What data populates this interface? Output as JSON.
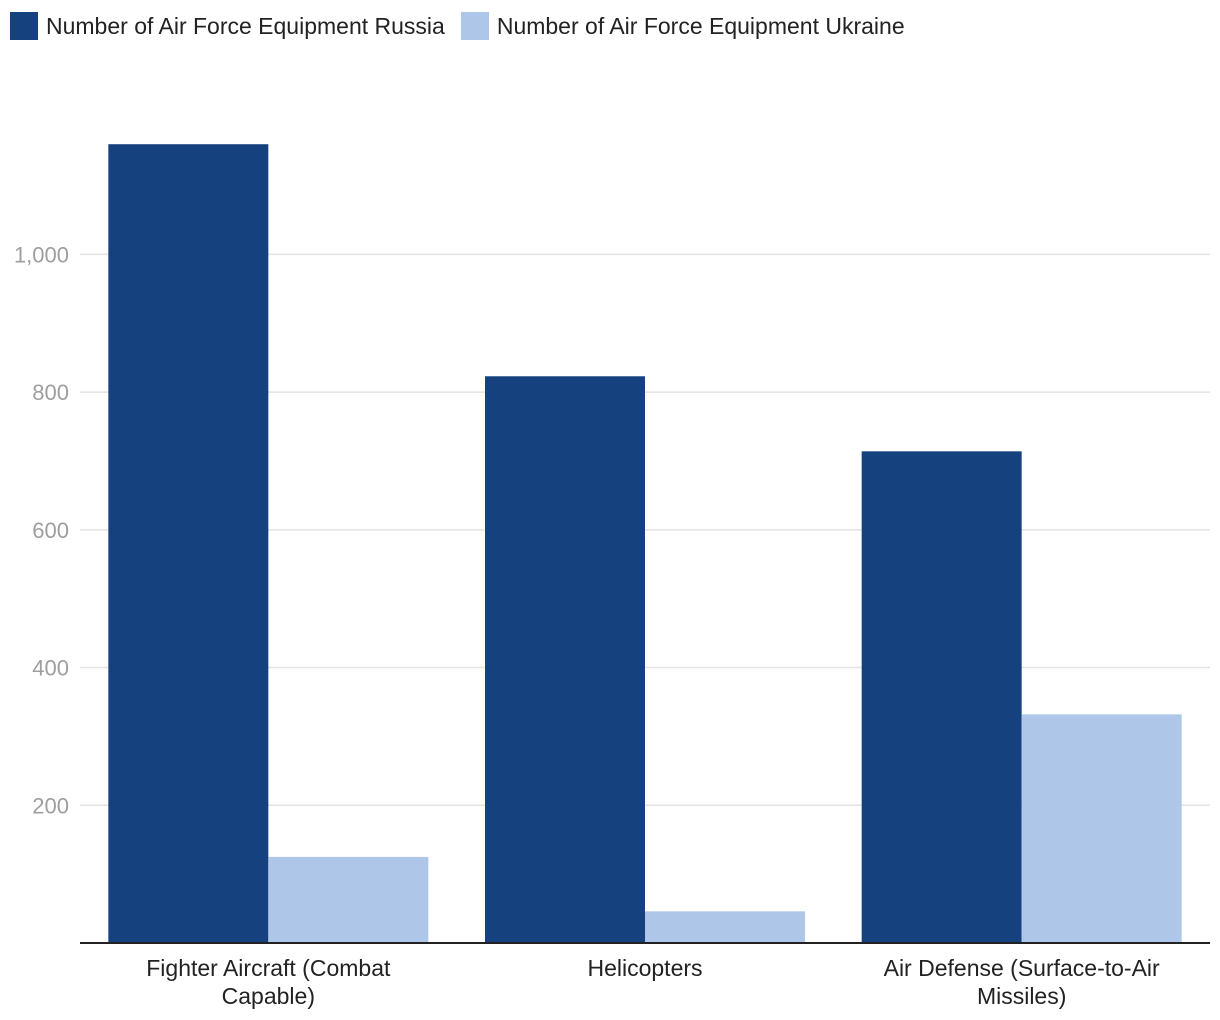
{
  "chart_data": {
    "type": "bar",
    "categories": [
      [
        "Fighter Aircraft (Combat",
        "Capable)"
      ],
      [
        "Helicopters"
      ],
      [
        "Air Defense (Surface-to-Air",
        "Missiles)"
      ]
    ],
    "series": [
      {
        "name": "Number of Air Force Equipment Russia",
        "color": "#15427f",
        "values": [
          1160,
          823,
          714
        ]
      },
      {
        "name": "Number of Air Force Equipment Ukraine",
        "color": "#aec7e8",
        "values": [
          125,
          46,
          332
        ]
      }
    ],
    "y_ticks": [
      {
        "value": 200,
        "label": "200"
      },
      {
        "value": 400,
        "label": "400"
      },
      {
        "value": 600,
        "label": "600"
      },
      {
        "value": 800,
        "label": "800"
      },
      {
        "value": 1000,
        "label": "1,000"
      }
    ],
    "ylim": [
      0,
      1230
    ],
    "grid": true,
    "legend_position": "top-left"
  }
}
